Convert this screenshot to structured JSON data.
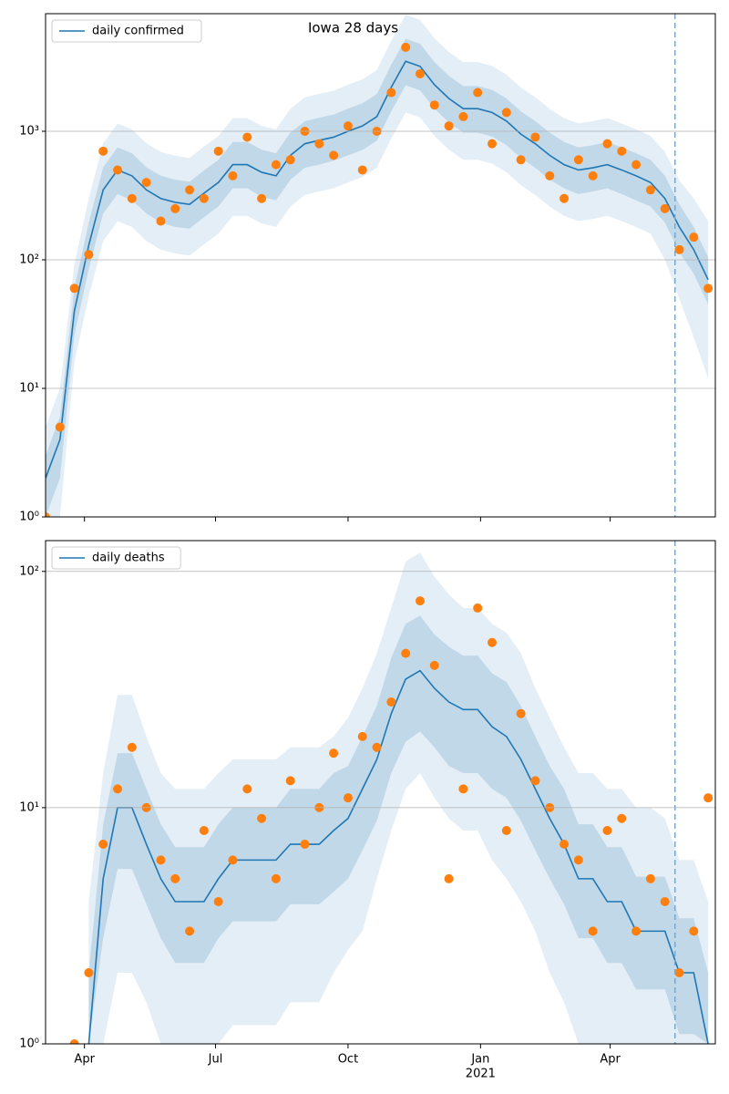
{
  "chart_data": [
    {
      "type": "line",
      "title": "Iowa 28 days",
      "log_y": true,
      "grid": "y",
      "legend": "upper left",
      "x": [
        0,
        10,
        20,
        30,
        40,
        50,
        60,
        70,
        80,
        90,
        100,
        110,
        120,
        130,
        140,
        150,
        160,
        170,
        180,
        190,
        200,
        210,
        220,
        230,
        240,
        250,
        260,
        270,
        280,
        290,
        300,
        310,
        320,
        330,
        340,
        350,
        360,
        370,
        380,
        390,
        400,
        410,
        420,
        430,
        440,
        450,
        460
      ],
      "xlim": [
        0,
        465
      ],
      "xticks": [
        {
          "value": 27,
          "label": "Apr"
        },
        {
          "value": 118,
          "label": "Jul"
        },
        {
          "value": 210,
          "label": "Oct"
        },
        {
          "value": 302,
          "label": "Jan"
        },
        {
          "value": 392,
          "label": "Apr"
        }
      ],
      "show_xtick_labels": false,
      "ylim": [
        1,
        8220
      ],
      "yticks": [
        {
          "value": 1,
          "label": "10⁰"
        },
        {
          "value": 10,
          "label": "10¹"
        },
        {
          "value": 100,
          "label": "10²"
        },
        {
          "value": 1000,
          "label": "10³"
        }
      ],
      "vline": 437,
      "vline_color": "#7ba7cc",
      "series": [
        {
          "name": "daily confirmed",
          "color": "#1f77b4",
          "values": [
            2,
            4,
            40,
            130,
            350,
            500,
            450,
            350,
            300,
            280,
            270,
            330,
            400,
            550,
            550,
            480,
            450,
            650,
            800,
            850,
            900,
            1000,
            1100,
            1300,
            2200,
            3500,
            3200,
            2300,
            1800,
            1500,
            1500,
            1400,
            1200,
            950,
            800,
            650,
            550,
            500,
            520,
            550,
            500,
            450,
            400,
            300,
            180,
            120,
            70
          ]
        }
      ],
      "observed": {
        "color": "#ff7f0e",
        "values": [
          1,
          5,
          60,
          110,
          700,
          500,
          300,
          400,
          200,
          250,
          350,
          300,
          700,
          450,
          900,
          300,
          550,
          600,
          1000,
          800,
          650,
          1100,
          500,
          1000,
          2000,
          4500,
          2800,
          1600,
          1100,
          1300,
          2000,
          800,
          1400,
          600,
          900,
          450,
          300,
          600,
          450,
          800,
          700,
          550,
          350,
          250,
          120,
          150,
          60
        ]
      },
      "bands": [
        {
          "color": "#1f77b4",
          "opacity": 0.12,
          "lower": [
            1,
            1,
            16,
            52,
            140,
            200,
            180,
            140,
            120,
            112,
            108,
            132,
            160,
            220,
            220,
            192,
            180,
            260,
            320,
            340,
            360,
            400,
            440,
            520,
            880,
            1400,
            1280,
            920,
            720,
            600,
            600,
            560,
            480,
            380,
            320,
            260,
            220,
            200,
            208,
            220,
            200,
            180,
            160,
            100,
            50,
            25,
            12
          ],
          "upper": [
            5,
            10,
            92,
            300,
            805,
            1150,
            1035,
            805,
            690,
            645,
            620,
            760,
            920,
            1265,
            1265,
            1100,
            1035,
            1495,
            1840,
            1955,
            2070,
            2300,
            2530,
            2990,
            5060,
            8050,
            7360,
            5290,
            4140,
            3450,
            3450,
            3220,
            2760,
            2185,
            1840,
            1495,
            1265,
            1150,
            1200,
            1265,
            1150,
            1035,
            920,
            690,
            415,
            300,
            200
          ]
        },
        {
          "color": "#1f77b4",
          "opacity": 0.18,
          "lower": [
            1,
            2,
            26,
            85,
            230,
            325,
            290,
            230,
            195,
            180,
            175,
            215,
            260,
            360,
            360,
            310,
            290,
            420,
            520,
            550,
            590,
            650,
            715,
            845,
            1430,
            2280,
            2080,
            1500,
            1170,
            975,
            975,
            910,
            780,
            620,
            520,
            420,
            360,
            325,
            340,
            360,
            325,
            290,
            260,
            195,
            115,
            78,
            45
          ],
          "upper": [
            3,
            6,
            60,
            195,
            525,
            750,
            675,
            525,
            450,
            420,
            405,
            495,
            600,
            825,
            825,
            720,
            675,
            975,
            1200,
            1275,
            1350,
            1500,
            1650,
            1950,
            3300,
            5250,
            4800,
            3450,
            2700,
            2250,
            2250,
            2100,
            1800,
            1425,
            1200,
            975,
            825,
            750,
            780,
            825,
            750,
            675,
            600,
            450,
            270,
            180,
            105
          ]
        }
      ]
    },
    {
      "type": "line",
      "log_y": true,
      "grid": "y",
      "legend": "upper left",
      "x": [
        0,
        10,
        20,
        30,
        40,
        50,
        60,
        70,
        80,
        90,
        100,
        110,
        120,
        130,
        140,
        150,
        160,
        170,
        180,
        190,
        200,
        210,
        220,
        230,
        240,
        250,
        260,
        270,
        280,
        290,
        300,
        310,
        320,
        330,
        340,
        350,
        360,
        370,
        380,
        390,
        400,
        410,
        420,
        430,
        440,
        450,
        460
      ],
      "xlim": [
        0,
        465
      ],
      "xticks": [
        {
          "value": 27,
          "label": "Apr"
        },
        {
          "value": 118,
          "label": "Jul"
        },
        {
          "value": 210,
          "label": "Oct"
        },
        {
          "value": 302,
          "label": "Jan"
        },
        {
          "value": 392,
          "label": "Apr"
        }
      ],
      "show_xtick_labels": true,
      "year_label": "2021",
      "year_tick": 3,
      "ylim": [
        1,
        135
      ],
      "yticks": [
        {
          "value": 1,
          "label": "10⁰"
        },
        {
          "value": 10,
          "label": "10¹"
        },
        {
          "value": 100,
          "label": "10²"
        }
      ],
      "vline": 437,
      "vline_color": "#7ba7cc",
      "series": [
        {
          "name": "daily deaths",
          "color": "#1f77b4",
          "values": [
            null,
            null,
            null,
            1,
            5,
            10,
            10,
            7,
            5,
            4,
            4,
            4,
            5,
            6,
            6,
            6,
            6,
            7,
            7,
            7,
            8,
            9,
            12,
            16,
            25,
            35,
            38,
            32,
            28,
            26,
            26,
            22,
            20,
            16,
            12,
            9,
            7,
            5,
            5,
            4,
            4,
            3,
            3,
            3,
            2,
            2,
            1
          ]
        }
      ],
      "observed": {
        "color": "#ff7f0e",
        "values": [
          null,
          null,
          1,
          2,
          7,
          12,
          18,
          10,
          6,
          5,
          3,
          8,
          4,
          6,
          12,
          9,
          5,
          13,
          7,
          10,
          17,
          11,
          20,
          18,
          28,
          45,
          75,
          40,
          5,
          12,
          70,
          50,
          8,
          25,
          13,
          10,
          7,
          6,
          3,
          8,
          9,
          3,
          5,
          4,
          2,
          3,
          11
        ]
      },
      "bands": [
        {
          "color": "#1f77b4",
          "opacity": 0.12,
          "lower": [
            null,
            null,
            null,
            1,
            1,
            2,
            2,
            1.5,
            1,
            1,
            1,
            1,
            1,
            1.2,
            1.2,
            1.2,
            1.2,
            1.5,
            1.5,
            1.5,
            2,
            2.5,
            3,
            5,
            8,
            12,
            14,
            11,
            9,
            8,
            8,
            6,
            5,
            4,
            3,
            2,
            1.5,
            1,
            1,
            1,
            1,
            1,
            1,
            1,
            1,
            1,
            1
          ],
          "upper": [
            null,
            null,
            null,
            4,
            14,
            30,
            30,
            20,
            14,
            12,
            12,
            12,
            14,
            16,
            16,
            16,
            16,
            18,
            18,
            18,
            20,
            24,
            32,
            45,
            70,
            110,
            120,
            95,
            80,
            70,
            70,
            60,
            55,
            45,
            32,
            24,
            18,
            14,
            14,
            12,
            12,
            10,
            10,
            9,
            6,
            6,
            4
          ]
        },
        {
          "color": "#1f77b4",
          "opacity": 0.18,
          "lower": [
            null,
            null,
            null,
            1,
            2.8,
            5.5,
            5.5,
            3.9,
            2.8,
            2.2,
            2.2,
            2.2,
            2.8,
            3.3,
            3.3,
            3.3,
            3.3,
            3.9,
            3.9,
            3.9,
            4.4,
            5,
            6.6,
            8.8,
            14,
            19,
            21,
            18,
            15,
            14,
            14,
            12,
            11,
            8.8,
            6.6,
            5,
            3.9,
            2.8,
            2.8,
            2.2,
            2.2,
            1.7,
            1.7,
            1.7,
            1.1,
            1.1,
            1
          ],
          "upper": [
            null,
            null,
            null,
            2,
            8.5,
            17,
            17,
            12,
            8.5,
            6.8,
            6.8,
            6.8,
            8.5,
            10,
            10,
            10,
            10,
            12,
            12,
            12,
            14,
            15,
            20,
            27,
            43,
            60,
            65,
            54,
            48,
            44,
            44,
            37,
            34,
            27,
            20,
            15,
            12,
            8.5,
            8.5,
            6.8,
            6.8,
            5.1,
            5.1,
            5.1,
            3.4,
            3.4,
            2
          ]
        }
      ]
    }
  ]
}
